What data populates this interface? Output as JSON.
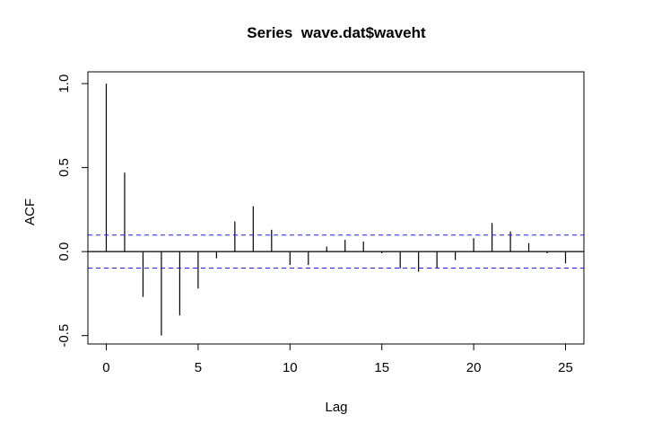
{
  "chart_data": {
    "type": "bar",
    "title": "Series  wave.dat$waveht",
    "xlabel": "Lag",
    "ylabel": "ACF",
    "xlim": [
      -1,
      26
    ],
    "ylim": [
      -0.55,
      1.07
    ],
    "x_ticks": [
      "0",
      "5",
      "10",
      "15",
      "20",
      "25"
    ],
    "y_ticks": [
      "-0.5",
      "0.0",
      "0.5",
      "1.0"
    ],
    "confidence_bound": 0.098,
    "lags": [
      0,
      1,
      2,
      3,
      4,
      5,
      6,
      7,
      8,
      9,
      10,
      11,
      12,
      13,
      14,
      15,
      16,
      17,
      18,
      19,
      20,
      21,
      22,
      23,
      24,
      25
    ],
    "values": [
      1.0,
      0.47,
      -0.27,
      -0.5,
      -0.38,
      -0.22,
      -0.04,
      0.18,
      0.27,
      0.13,
      -0.08,
      -0.08,
      0.03,
      0.07,
      0.06,
      -0.01,
      -0.1,
      -0.12,
      -0.1,
      -0.05,
      0.08,
      0.17,
      0.12,
      0.05,
      -0.01,
      -0.07
    ],
    "grid": false,
    "bound_color": "#1a1aff"
  }
}
